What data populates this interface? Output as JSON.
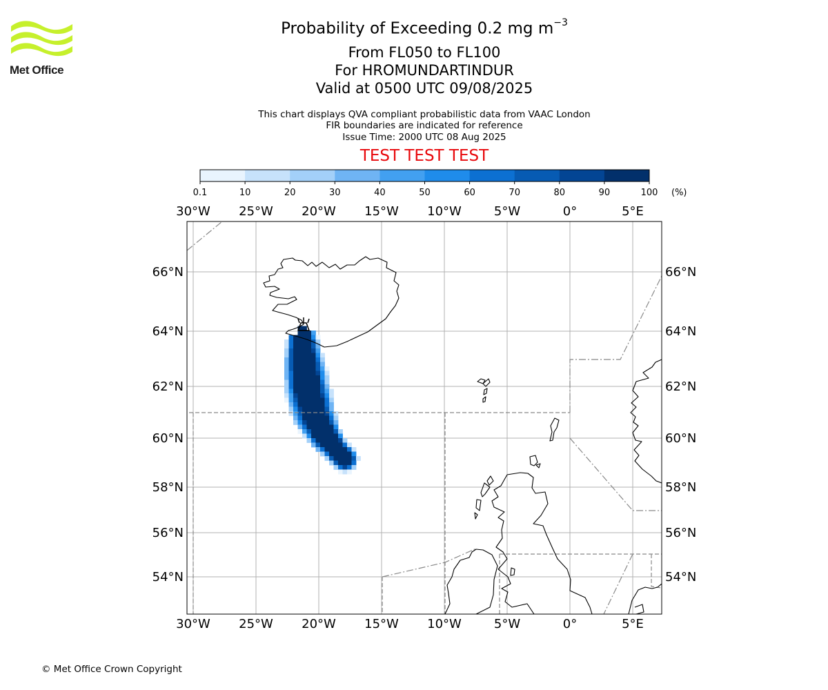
{
  "header": {
    "logo_text": "Met Office",
    "title_prefix": "Probability of Exceeding 0.2 mg m",
    "title_exponent": "−3",
    "line2": "From FL050 to FL100",
    "line3": "For HROMUNDARTINDUR",
    "line4": "Valid at 0500 UTC 09/08/2025",
    "note1": "This chart displays QVA compliant probabilistic data from VAAC London",
    "note2": "FIR boundaries are indicated for reference",
    "note3": "Issue Time: 2000 UTC 08 Aug 2025",
    "test_banner": "TEST TEST TEST"
  },
  "colorbar": {
    "ticks": [
      "0.1",
      "10",
      "20",
      "30",
      "40",
      "50",
      "60",
      "70",
      "80",
      "90",
      "100"
    ],
    "unit": "(%)",
    "colors": [
      "#e9f4fe",
      "#c7e2fb",
      "#a3d0f9",
      "#6fb4f4",
      "#42a0f1",
      "#1f8ceb",
      "#0c70d2",
      "#075bb3",
      "#034594",
      "#02306b"
    ]
  },
  "map": {
    "lon_ticks": [
      {
        "value": -30,
        "label": "30°W"
      },
      {
        "value": -25,
        "label": "25°W"
      },
      {
        "value": -20,
        "label": "20°W"
      },
      {
        "value": -15,
        "label": "15°W"
      },
      {
        "value": -10,
        "label": "10°W"
      },
      {
        "value": -5,
        "label": "5°W"
      },
      {
        "value": 0,
        "label": "0°"
      },
      {
        "value": 5,
        "label": "5°E"
      }
    ],
    "lat_ticks": [
      {
        "value": 66,
        "label": "66°N"
      },
      {
        "value": 64,
        "label": "64°N"
      },
      {
        "value": 62,
        "label": "62°N"
      },
      {
        "value": 60,
        "label": "60°N"
      },
      {
        "value": 58,
        "label": "58°N"
      },
      {
        "value": 56,
        "label": "56°N"
      },
      {
        "value": 54,
        "label": "54°N"
      }
    ],
    "volcano": {
      "name": "HROMUNDARTINDUR",
      "lon": -21.2,
      "lat": 64.1
    },
    "coastline_color": "#000000",
    "fir_boundary_color": "#888888",
    "gridline_color": "#b0b0b0"
  },
  "footer": {
    "copyright": "© Met Office Crown Copyright"
  }
}
